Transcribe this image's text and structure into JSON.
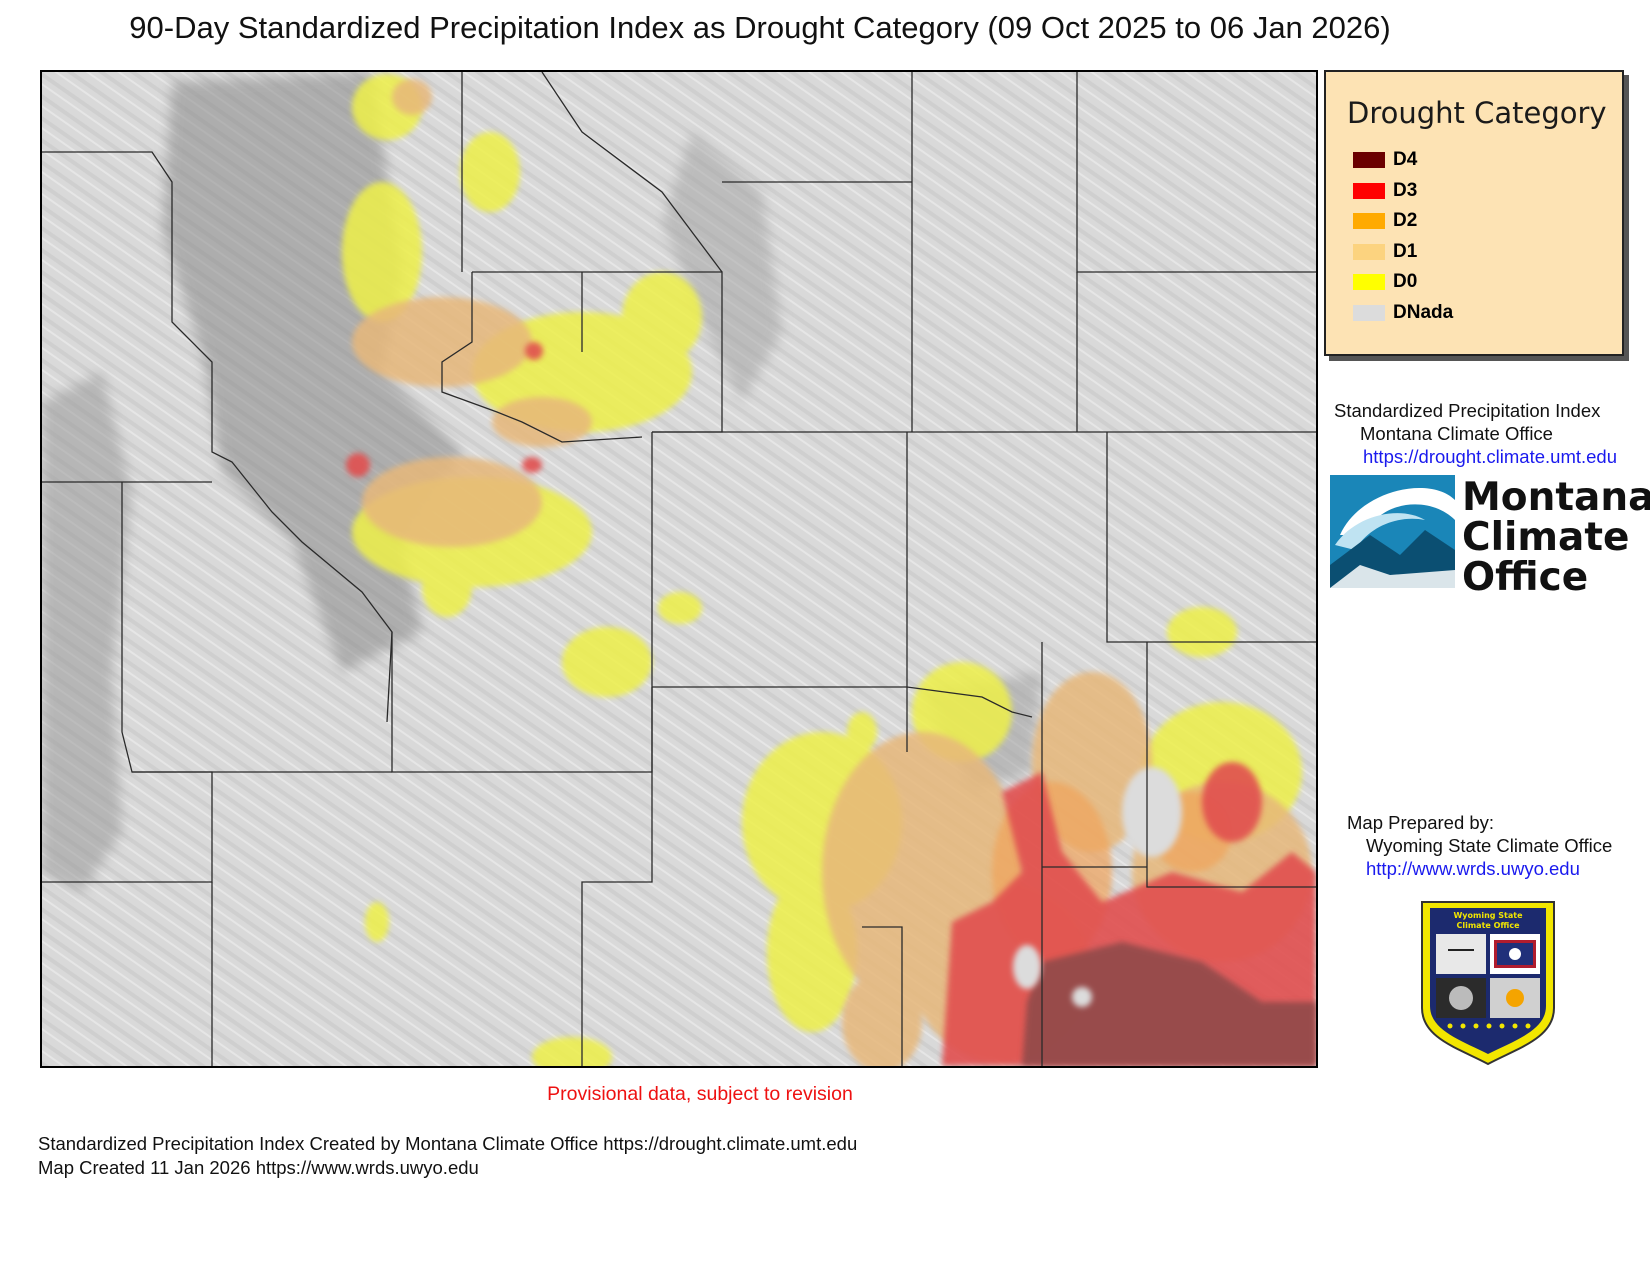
{
  "title": "90-Day Standardized Precipitation Index as Drought Category (09 Oct 2025 to 06 Jan 2026)",
  "legend": {
    "title": "Drought Category",
    "items": [
      {
        "label": "D4",
        "color": "#6b0000"
      },
      {
        "label": "D3",
        "color": "#ff0000"
      },
      {
        "label": "D2",
        "color": "#ffaa00"
      },
      {
        "label": "D1",
        "color": "#fcd37f"
      },
      {
        "label": "D0",
        "color": "#ffff00"
      },
      {
        "label": "DNada",
        "color": "#dcdcdc"
      }
    ]
  },
  "spi_credit": {
    "line1": "Standardized Precipitation Index",
    "line2": "Montana Climate Office",
    "url": "https://drought.climate.umt.edu"
  },
  "mco_logo": {
    "line1": "Montana",
    "line2": "Climate",
    "line3": "Office"
  },
  "prepared_by": {
    "label": "Map Prepared by:",
    "org": "Wyoming State Climate Office",
    "url": "http://www.wrds.uwyo.edu"
  },
  "wsco_badge": {
    "line1": "Wyoming State",
    "line2": "Climate Office"
  },
  "provisional": "Provisional data, subject to revision",
  "footer": {
    "line1": "Standardized Precipitation Index Created by Montana Climate Office https://drought.climate.umt.edu",
    "line2": "Map Created 11 Jan 2026 https://www.wrds.uwyo.edu"
  }
}
